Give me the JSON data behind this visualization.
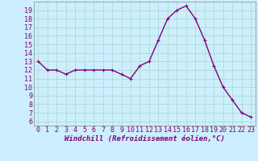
{
  "x": [
    0,
    1,
    2,
    3,
    4,
    5,
    6,
    7,
    8,
    9,
    10,
    11,
    12,
    13,
    14,
    15,
    16,
    17,
    18,
    19,
    20,
    21,
    22,
    23
  ],
  "y": [
    13,
    12,
    12,
    11.5,
    12,
    12,
    12,
    12,
    12,
    11.5,
    11,
    12.5,
    13,
    15.5,
    18,
    19,
    19.5,
    18,
    15.5,
    12.5,
    10,
    8.5,
    7,
    6.5
  ],
  "line_color": "#800080",
  "marker": "+",
  "marker_color": "#800080",
  "marker_size": 3,
  "marker_linewidth": 0.8,
  "line_width": 1.0,
  "bg_color": "#cceeff",
  "grid_color": "#aaddcc",
  "xlabel": "Windchill (Refroidissement éolien,°C)",
  "xlabel_fontsize": 6.5,
  "tick_fontsize": 6,
  "xlim": [
    -0.5,
    23.5
  ],
  "ylim": [
    5.5,
    20
  ],
  "yticks": [
    6,
    7,
    8,
    9,
    10,
    11,
    12,
    13,
    14,
    15,
    16,
    17,
    18,
    19
  ],
  "xticks": [
    0,
    1,
    2,
    3,
    4,
    5,
    6,
    7,
    8,
    9,
    10,
    11,
    12,
    13,
    14,
    15,
    16,
    17,
    18,
    19,
    20,
    21,
    22,
    23
  ]
}
